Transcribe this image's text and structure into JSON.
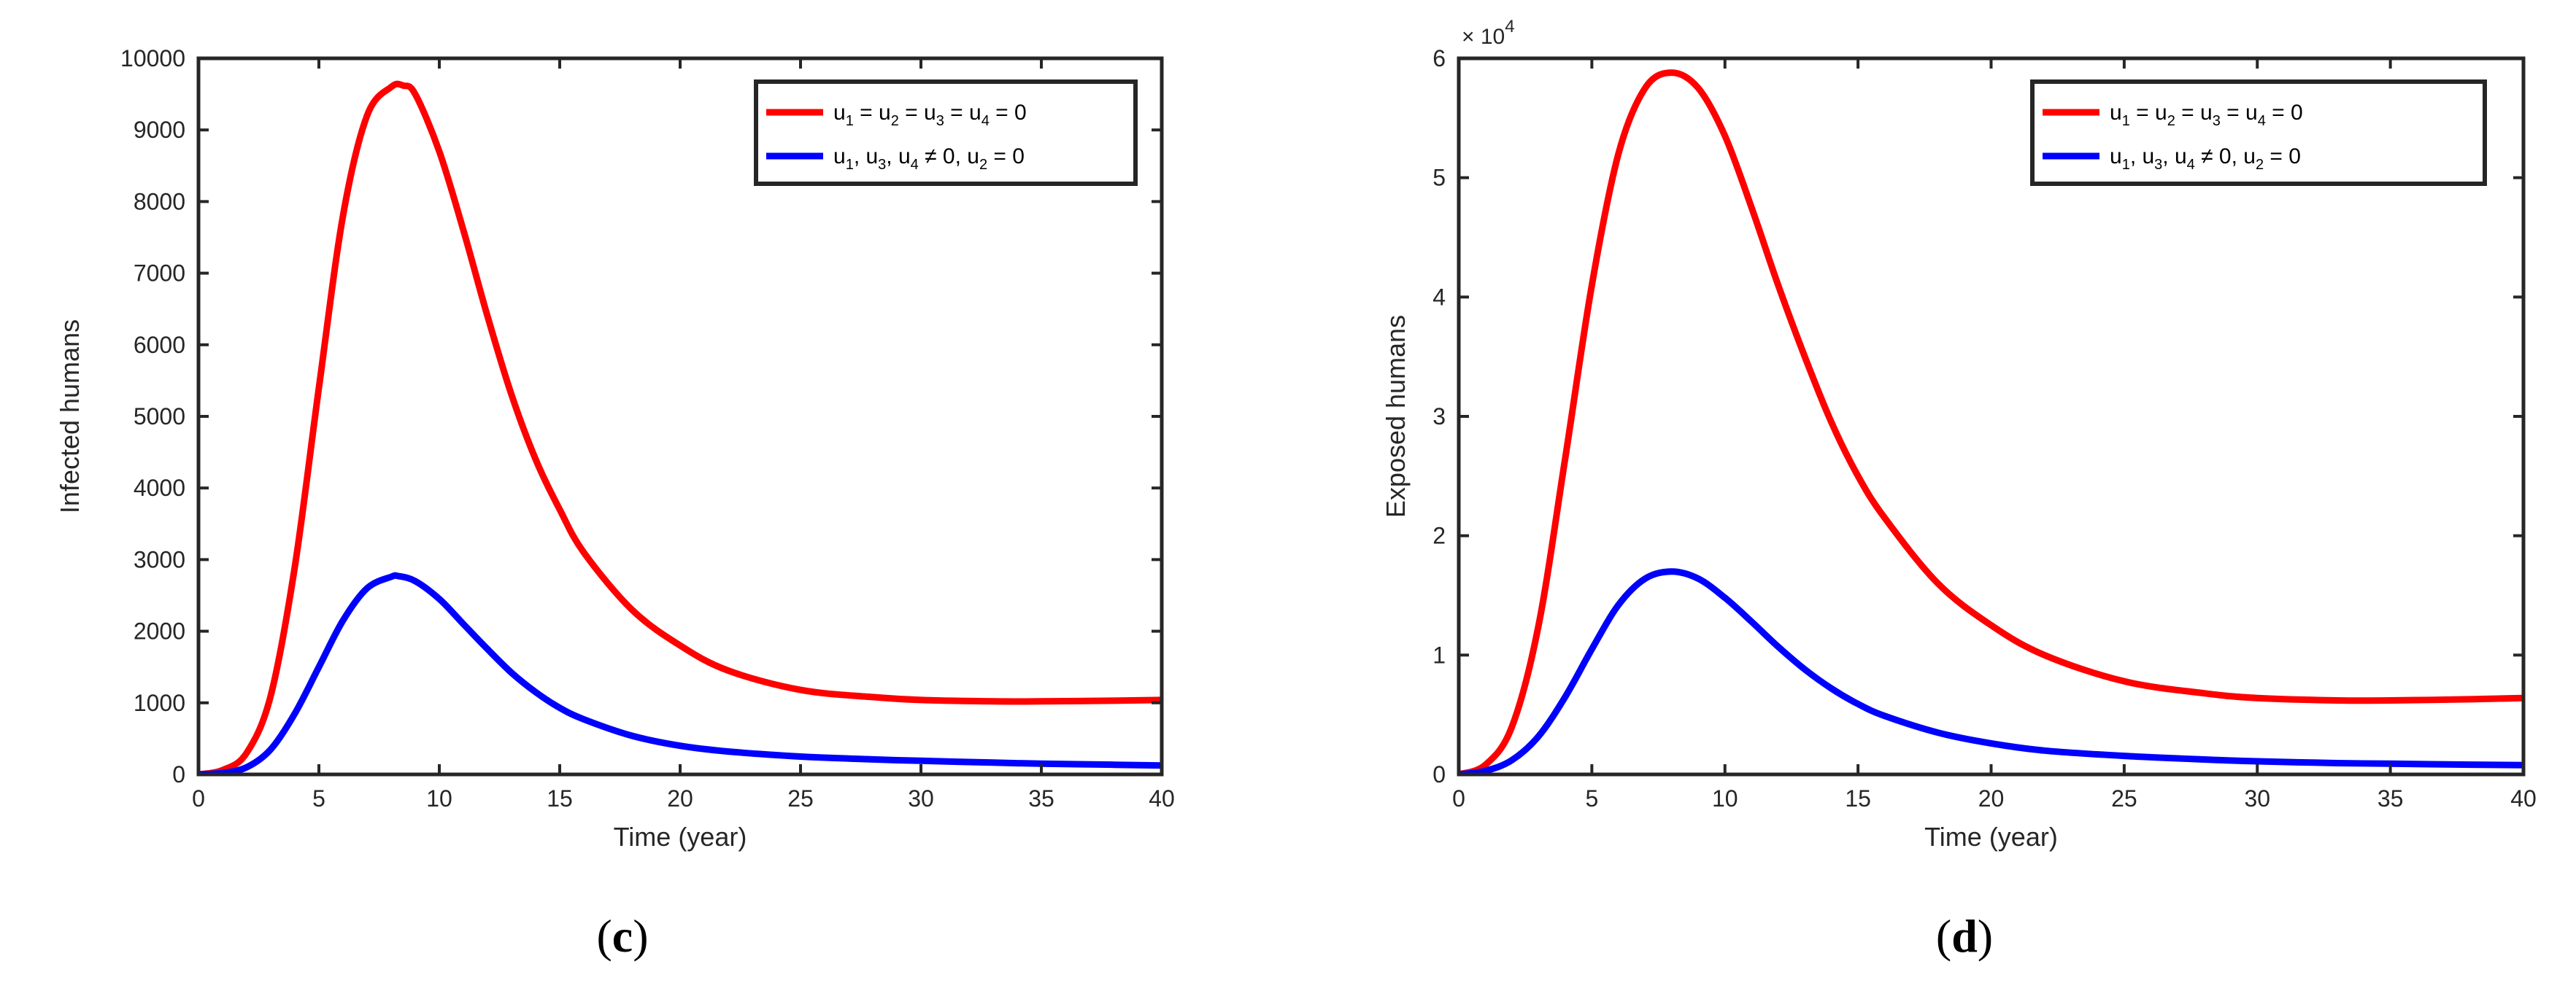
{
  "chart_data": [
    {
      "type": "line",
      "panel_label": "c",
      "xlabel": "Time (year)",
      "ylabel": "Infected humans",
      "xlim": [
        0,
        40
      ],
      "ylim": [
        0,
        10000
      ],
      "xticks": [
        0,
        5,
        10,
        15,
        20,
        25,
        30,
        35,
        40
      ],
      "yticks": [
        0,
        1000,
        2000,
        3000,
        4000,
        5000,
        6000,
        7000,
        8000,
        9000,
        10000
      ],
      "legend_position": "top-right",
      "grid": false,
      "series": [
        {
          "legend": {
            "parts": [
              "u",
              "1",
              " = u",
              "2",
              " = u",
              "3",
              " = u",
              "4",
              " = 0"
            ]
          },
          "color": "#ff0000",
          "x": [
            0,
            1,
            2,
            3,
            4,
            5,
            6,
            7,
            8,
            8.5,
            9,
            10,
            11,
            12,
            13,
            14,
            15,
            16,
            18,
            20,
            22,
            25,
            28,
            30,
            33,
            35,
            38,
            40
          ],
          "y": [
            0,
            60,
            300,
            1100,
            2900,
            5400,
            7800,
            9200,
            9600,
            9620,
            9500,
            8700,
            7600,
            6400,
            5300,
            4400,
            3700,
            3100,
            2300,
            1800,
            1450,
            1180,
            1080,
            1040,
            1020,
            1020,
            1030,
            1040
          ]
        },
        {
          "legend": {
            "parts": [
              "u",
              "1",
              ", u",
              "3",
              ", u",
              "4",
              " ≠ 0,  u",
              "2",
              " = 0"
            ]
          },
          "color": "#0000ff",
          "x": [
            0,
            1,
            2,
            3,
            4,
            5,
            6,
            7,
            8,
            8.3,
            9,
            10,
            11,
            12,
            13,
            14,
            15,
            16,
            18,
            20,
            22,
            25,
            28,
            30,
            33,
            35,
            38,
            40
          ],
          "y": [
            0,
            20,
            100,
            350,
            850,
            1500,
            2150,
            2600,
            2760,
            2770,
            2700,
            2450,
            2100,
            1750,
            1420,
            1150,
            930,
            770,
            540,
            400,
            320,
            250,
            210,
            190,
            165,
            150,
            135,
            125
          ]
        }
      ]
    },
    {
      "type": "line",
      "panel_label": "d",
      "xlabel": "Time (year)",
      "ylabel": "Exposed humans",
      "xlim": [
        0,
        40
      ],
      "ylim": [
        0,
        60000
      ],
      "xticks": [
        0,
        5,
        10,
        15,
        20,
        25,
        30,
        35,
        40
      ],
      "yticks": [
        0,
        10000,
        20000,
        30000,
        40000,
        50000,
        60000
      ],
      "ytick_labels": [
        "0",
        "1",
        "2",
        "3",
        "4",
        "5",
        "6"
      ],
      "y_multiplier": {
        "base": "× 10",
        "exponent": "4"
      },
      "legend_position": "top-right",
      "grid": false,
      "series": [
        {
          "legend": {
            "parts": [
              "u",
              "1",
              " = u",
              "2",
              " = u",
              "3",
              " = u",
              "4",
              " = 0"
            ]
          },
          "color": "#ff0000",
          "x": [
            0,
            1,
            2,
            3,
            4,
            5,
            6,
            7,
            8,
            9,
            10,
            11,
            12,
            13,
            14,
            15,
            16,
            18,
            20,
            22,
            25,
            28,
            30,
            33,
            35,
            38,
            40
          ],
          "y": [
            0,
            800,
            4000,
            12500,
            26500,
            41000,
            52000,
            57500,
            58800,
            57500,
            53500,
            47500,
            41000,
            35000,
            29500,
            25000,
            21500,
            16000,
            12500,
            10000,
            7800,
            6800,
            6400,
            6200,
            6200,
            6300,
            6400
          ]
        },
        {
          "legend": {
            "parts": [
              "u",
              "1",
              ", u",
              "3",
              ", u",
              "4",
              " ≠ 0,  u",
              "2",
              " = 0"
            ]
          },
          "color": "#0000ff",
          "x": [
            0,
            1,
            2,
            3,
            4,
            5,
            6,
            7,
            8,
            9,
            10,
            11,
            12,
            13,
            14,
            15,
            16,
            18,
            20,
            22,
            25,
            28,
            30,
            33,
            35,
            38,
            40
          ],
          "y": [
            0,
            300,
            1200,
            3200,
            6500,
            10500,
            14200,
            16400,
            17000,
            16400,
            14800,
            12800,
            10700,
            8800,
            7200,
            5900,
            4900,
            3500,
            2600,
            2000,
            1550,
            1250,
            1100,
            950,
            900,
            820,
            780
          ]
        }
      ]
    }
  ]
}
